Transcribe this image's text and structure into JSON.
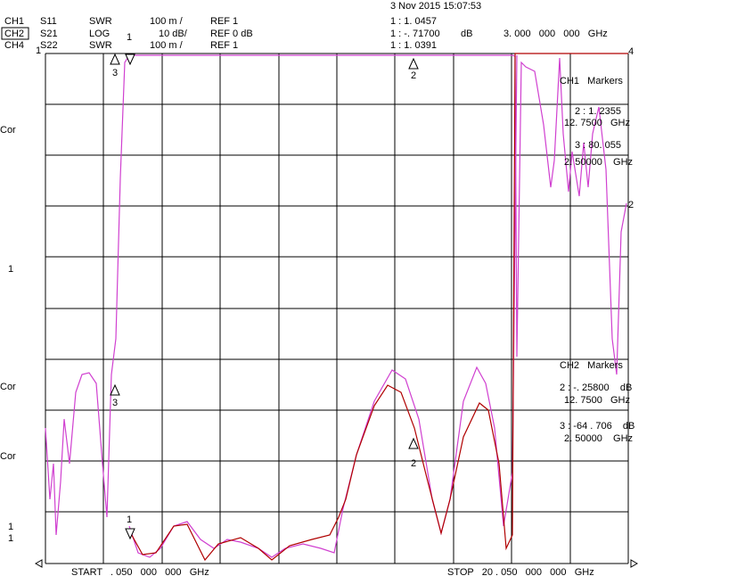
{
  "header": {
    "datetime": "3 Nov 2015 15:07:53",
    "channels": [
      {
        "ch": "CH1",
        "param": "S11",
        "format": "SWR",
        "scale": "100 m /",
        "ref": "REF 1",
        "marker": "1 : 1. 0457"
      },
      {
        "ch": "CH2",
        "param": "S21",
        "format": "LOG",
        "scale": "10 dB/",
        "ref": "REF 0 dB",
        "marker": "1 : -. 71700",
        "unit": "dB",
        "freq": "3. 000   000   000   GHz"
      },
      {
        "ch": "CH4",
        "param": "S22",
        "format": "SWR",
        "scale": "100 m /",
        "ref": "REF 1",
        "marker": "1 : 1. 0391"
      }
    ]
  },
  "markers": {
    "ch1": {
      "title": "CH1   Markers",
      "entries": [
        {
          "value": "2 : 1. 2355",
          "freq": "12. 7500   GHz"
        },
        {
          "value": "3 : 80. 055",
          "freq": "2. 50000    GHz"
        }
      ]
    },
    "ch2": {
      "title": "CH2   Markers",
      "entries": [
        {
          "value": "2 : -. 25800    dB",
          "freq": "12. 7500   GHz"
        },
        {
          "value": "3 : -64 . 706    dB",
          "freq": "2. 50000    GHz"
        }
      ]
    }
  },
  "left_labels": [
    "1",
    "Cor",
    "1",
    "Cor",
    "Cor",
    "1",
    "1"
  ],
  "trace_markers": [
    "3",
    "1",
    "2",
    "3",
    "2",
    "1",
    "4",
    "2"
  ],
  "footer": {
    "start": "START   . 050   000   000   GHz",
    "stop": "STOP   20 . 050   000   000   GHz"
  }
}
